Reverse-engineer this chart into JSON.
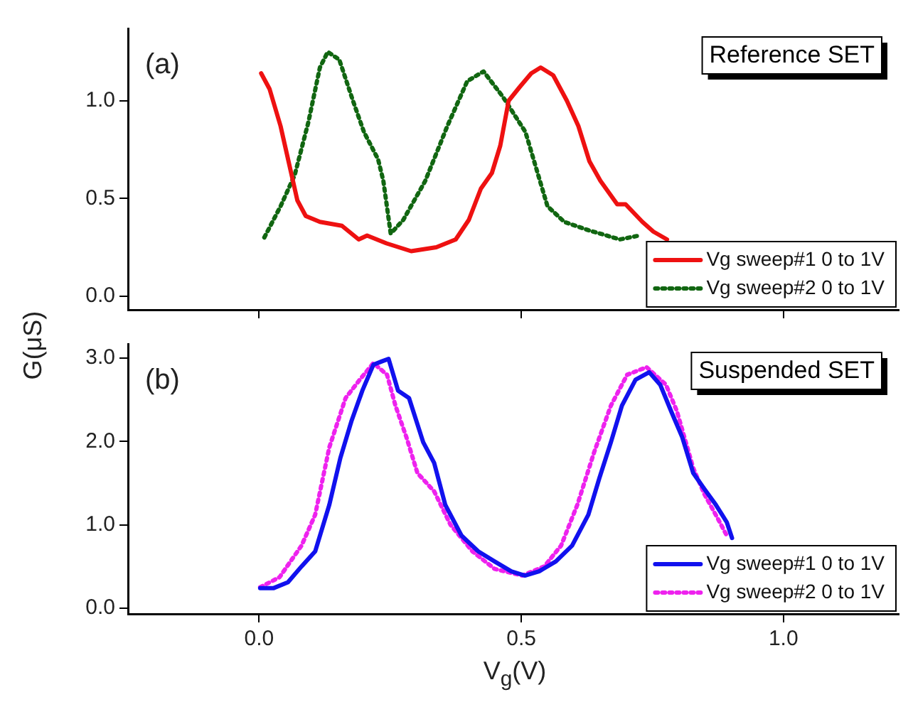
{
  "chart_data": [
    {
      "type": "line",
      "ylabel": "G(μS)",
      "annotations": [
        "(a)",
        "Reference SET"
      ],
      "xlim": [
        -0.25,
        1.22
      ],
      "xticks": [
        {
          "value": 0,
          "label": null
        },
        {
          "value": 0.5,
          "label": null
        },
        {
          "value": 1,
          "label": null
        }
      ],
      "ylim": [
        -0.07,
        1.37
      ],
      "yticks": [
        {
          "value": 0,
          "label": "0.0"
        },
        {
          "value": 0.5,
          "label": "0.5"
        },
        {
          "value": 1,
          "label": "1.0"
        }
      ],
      "tick_labels": "y",
      "grid": false,
      "legend": "bottom right",
      "marker": "none",
      "series": [
        {
          "name": "Vg sweep#1 0 to 1V",
          "color": "#ee1111",
          "line_style": "solid",
          "x": [
            0.004,
            0.02,
            0.041,
            0.057,
            0.073,
            0.089,
            0.116,
            0.158,
            0.19,
            0.206,
            0.243,
            0.29,
            0.338,
            0.375,
            0.4,
            0.423,
            0.444,
            0.46,
            0.476,
            0.497,
            0.519,
            0.537,
            0.561,
            0.587,
            0.609,
            0.63,
            0.651,
            0.683,
            0.699,
            0.731,
            0.752,
            0.778
          ],
          "values": [
            1.14,
            1.06,
            0.87,
            0.68,
            0.49,
            0.41,
            0.38,
            0.36,
            0.29,
            0.31,
            0.27,
            0.23,
            0.25,
            0.29,
            0.39,
            0.55,
            0.63,
            0.77,
            1.0,
            1.07,
            1.14,
            1.17,
            1.13,
            1.0,
            0.87,
            0.69,
            0.59,
            0.47,
            0.47,
            0.38,
            0.33,
            0.29
          ]
        },
        {
          "name": "Vg sweep#2 0 to 1V",
          "color": "#116611",
          "line_style": "dotted",
          "x": [
            0.01,
            0.041,
            0.068,
            0.094,
            0.116,
            0.131,
            0.153,
            0.179,
            0.2,
            0.227,
            0.237,
            0.251,
            0.275,
            0.317,
            0.359,
            0.397,
            0.428,
            0.465,
            0.508,
            0.529,
            0.55,
            0.582,
            0.625,
            0.688,
            0.725
          ],
          "values": [
            0.3,
            0.46,
            0.62,
            0.89,
            1.17,
            1.25,
            1.21,
            1.0,
            0.84,
            0.7,
            0.59,
            0.32,
            0.39,
            0.59,
            0.87,
            1.1,
            1.15,
            1.02,
            0.84,
            0.65,
            0.46,
            0.38,
            0.34,
            0.29,
            0.31
          ]
        }
      ]
    },
    {
      "type": "line",
      "xlabel": "V$_{g}$(V)",
      "annotations": [
        "(b)",
        "Suspended SET"
      ],
      "xlim": [
        -0.25,
        1.22
      ],
      "xticks": [
        {
          "value": 0,
          "label": "0.0"
        },
        {
          "value": 0.5,
          "label": "0.5"
        },
        {
          "value": 1,
          "label": "1.0"
        }
      ],
      "ylim": [
        -0.07,
        3.17
      ],
      "yticks": [
        {
          "value": 0,
          "label": "0.0"
        },
        {
          "value": 1,
          "label": "1.0"
        },
        {
          "value": 2,
          "label": "2.0"
        },
        {
          "value": 3,
          "label": "3.0"
        }
      ],
      "grid": false,
      "legend": "bottom right",
      "marker": "none",
      "series": [
        {
          "name": "Vg sweep#1 0 to 1V",
          "color": "#1111ee",
          "line_style": "solid",
          "x": [
            0.002,
            0.028,
            0.055,
            0.081,
            0.107,
            0.134,
            0.155,
            0.176,
            0.197,
            0.218,
            0.234,
            0.247,
            0.265,
            0.286,
            0.313,
            0.334,
            0.355,
            0.386,
            0.418,
            0.449,
            0.481,
            0.507,
            0.534,
            0.566,
            0.597,
            0.628,
            0.649,
            0.671,
            0.692,
            0.718,
            0.744,
            0.765,
            0.786,
            0.807,
            0.828,
            0.849,
            0.871,
            0.892,
            0.902
          ],
          "values": [
            0.24,
            0.24,
            0.31,
            0.5,
            0.68,
            1.24,
            1.8,
            2.24,
            2.61,
            2.92,
            2.96,
            2.99,
            2.61,
            2.52,
            1.99,
            1.74,
            1.24,
            0.87,
            0.68,
            0.56,
            0.44,
            0.39,
            0.44,
            0.56,
            0.75,
            1.12,
            1.56,
            1.99,
            2.43,
            2.74,
            2.83,
            2.68,
            2.36,
            2.05,
            1.62,
            1.43,
            1.24,
            1.03,
            0.84
          ]
        },
        {
          "name": "Vg sweep#2 0 to 1V",
          "color": "#ee22ee",
          "line_style": "dotted",
          "x": [
            0.002,
            0.039,
            0.081,
            0.107,
            0.134,
            0.165,
            0.192,
            0.218,
            0.244,
            0.26,
            0.281,
            0.302,
            0.334,
            0.365,
            0.407,
            0.449,
            0.502,
            0.544,
            0.576,
            0.607,
            0.639,
            0.671,
            0.702,
            0.739,
            0.776,
            0.797,
            0.828,
            0.849,
            0.876,
            0.892
          ],
          "values": [
            0.25,
            0.37,
            0.75,
            1.12,
            1.93,
            2.52,
            2.74,
            2.94,
            2.8,
            2.43,
            2.05,
            1.62,
            1.4,
            1.0,
            0.68,
            0.47,
            0.39,
            0.5,
            0.75,
            1.24,
            1.87,
            2.43,
            2.8,
            2.89,
            2.68,
            2.36,
            1.68,
            1.37,
            1.06,
            0.87
          ]
        }
      ]
    }
  ]
}
